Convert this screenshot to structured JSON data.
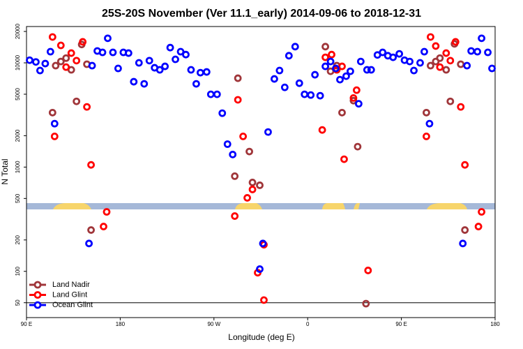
{
  "chart_data": {
    "type": "scatter",
    "title": "25S-20S November (Ver 11.1_early)   2014-09-06 to 2018-12-31",
    "xlabel": "Longitude (deg E)",
    "ylabel": "N Total",
    "xlim": [
      90,
      540
    ],
    "xticks": [
      {
        "value": 90,
        "label": "90 E"
      },
      180,
      {
        "value": 270,
        "label": "90 W"
      },
      {
        "value": 360,
        "label": "0"
      },
      {
        "value": 450,
        "label": "90 E"
      },
      {
        "value": 540,
        "label": "180"
      }
    ],
    "ylim": [
      36,
      22300
    ],
    "yscale": "log",
    "yticks": [
      50,
      100,
      200,
      500,
      1000,
      2000,
      5000,
      10000,
      20000
    ],
    "hline": 50,
    "legend": "lower left",
    "series": [
      {
        "name": "Land Nadir",
        "color": "#a0363a",
        "x": [
          115,
          118,
          123,
          128,
          133,
          138,
          143,
          148,
          152,
          290,
          293,
          304,
          307,
          314,
          377,
          382,
          388,
          393,
          404,
          408,
          416,
          474,
          478,
          483,
          487,
          493,
          497,
          501,
          507,
          511
        ],
        "values": [
          3330,
          9400,
          10300,
          11100,
          8570,
          4270,
          15000,
          9700,
          249,
          818,
          7120,
          1410,
          712,
          669,
          14300,
          8300,
          9400,
          3330,
          4340,
          1570,
          49,
          3330,
          9400,
          10300,
          11100,
          8570,
          4270,
          15200,
          9700,
          249
        ]
      },
      {
        "name": "Land Glint",
        "color": "#ff0000",
        "x": [
          115,
          117,
          123,
          128,
          133,
          138,
          144,
          148,
          152,
          164,
          167,
          290,
          293,
          298,
          302,
          307,
          312,
          318,
          318,
          374,
          377,
          383,
          388,
          393,
          395,
          404,
          407,
          418,
          474,
          478,
          483,
          487,
          493,
          497,
          502,
          507,
          511,
          524,
          527
        ],
        "values": [
          17700,
          1970,
          14700,
          9100,
          12400,
          10500,
          15900,
          3780,
          1050,
          269,
          372,
          339,
          4420,
          1970,
          507,
          610,
          97,
          180,
          53,
          2270,
          11300,
          12000,
          8570,
          9250,
          1190,
          4600,
          5470,
          102,
          1970,
          17700,
          14500,
          9100,
          12400,
          10500,
          15900,
          3780,
          1050,
          269,
          372
        ]
      },
      {
        "name": "Ocean Glint",
        "color": "#0000ff",
        "x": [
          93,
          99,
          103,
          108,
          113,
          117,
          150,
          153,
          158,
          163,
          168,
          173,
          178,
          183,
          188,
          193,
          198,
          203,
          208,
          213,
          218,
          223,
          228,
          233,
          238,
          243,
          248,
          253,
          257,
          263,
          267,
          273,
          278,
          283,
          288,
          317,
          314,
          322,
          328,
          333,
          338,
          342,
          348,
          352,
          357,
          363,
          367,
          372,
          377,
          382,
          387,
          391,
          397,
          401,
          409,
          411,
          417,
          421,
          427,
          432,
          437,
          442,
          448,
          453,
          458,
          462,
          468,
          472,
          477,
          509,
          513,
          517,
          523,
          527,
          533,
          537
        ],
        "values": [
          10600,
          10200,
          8440,
          9840,
          12800,
          2610,
          185,
          9400,
          13000,
          12600,
          17200,
          12600,
          8840,
          12600,
          12400,
          6590,
          10000,
          6290,
          10500,
          8970,
          8570,
          9250,
          14000,
          10800,
          12800,
          12000,
          8570,
          6290,
          8050,
          8180,
          4990,
          4990,
          3290,
          1660,
          1320,
          185,
          105,
          2170,
          7010,
          8440,
          5820,
          11700,
          14300,
          6380,
          4990,
          4910,
          7690,
          4840,
          9250,
          10300,
          8840,
          6900,
          7450,
          8300,
          4050,
          10300,
          8570,
          8570,
          11900,
          12600,
          11700,
          11300,
          12200,
          10600,
          10300,
          8440,
          10000,
          12800,
          2610,
          185,
          9400,
          13000,
          12800,
          17200,
          12600,
          8840
        ]
      }
    ]
  }
}
